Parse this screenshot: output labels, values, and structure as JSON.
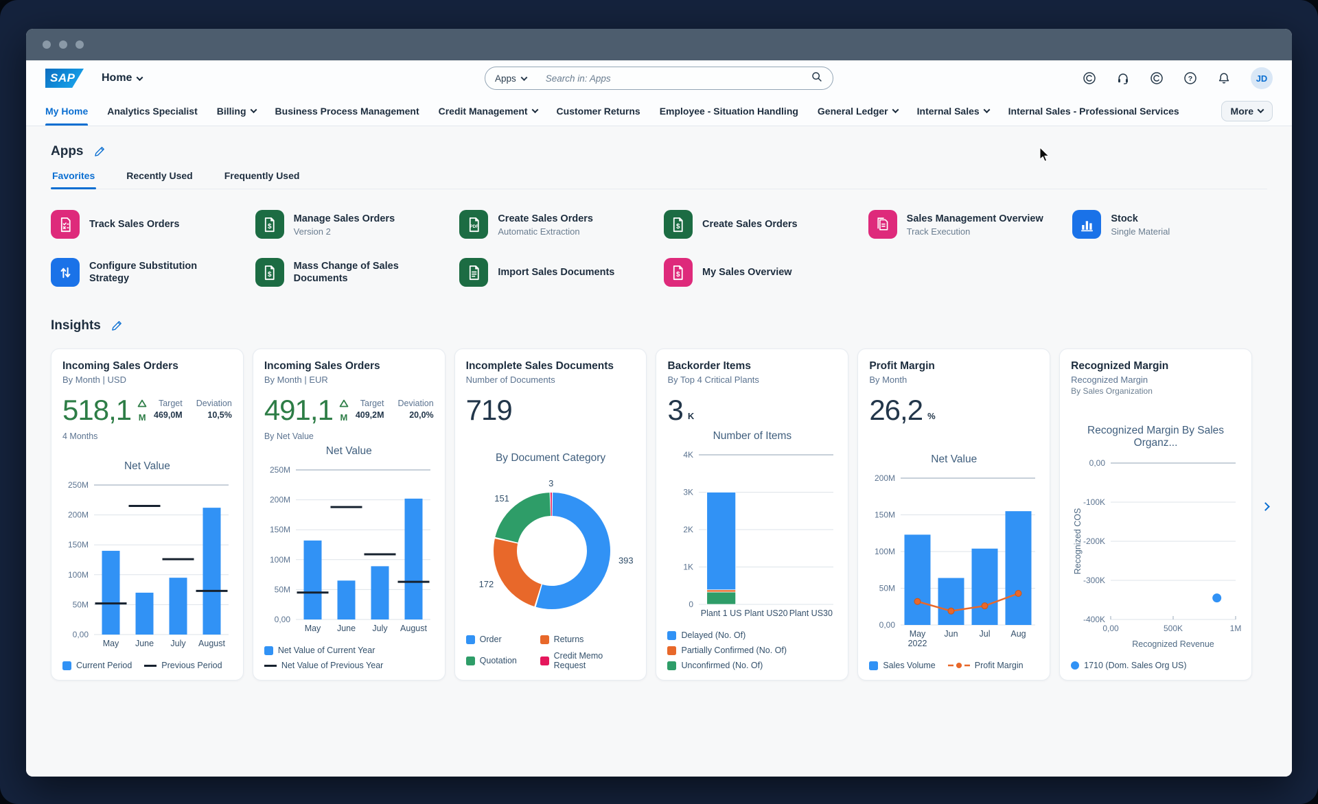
{
  "header": {
    "logo": "SAP",
    "home_label": "Home",
    "search": {
      "scope": "Apps",
      "placeholder": "Search in: Apps"
    },
    "icons": [
      {
        "name": "copilot-icon",
        "glyph": "c-circle"
      },
      {
        "name": "support-icon",
        "glyph": "headset"
      },
      {
        "name": "companion-icon",
        "glyph": "c-circle"
      },
      {
        "name": "help-icon",
        "glyph": "question"
      },
      {
        "name": "notifications-icon",
        "glyph": "bell"
      }
    ],
    "avatar_initials": "JD"
  },
  "nav_tabs": {
    "items": [
      {
        "label": "My Home",
        "active": true,
        "chevron": false
      },
      {
        "label": "Analytics Specialist",
        "chevron": false
      },
      {
        "label": "Billing",
        "chevron": true
      },
      {
        "label": "Business Process Management",
        "chevron": false
      },
      {
        "label": "Credit Management",
        "chevron": true
      },
      {
        "label": "Customer Returns",
        "chevron": false
      },
      {
        "label": "Employee - Situation Handling",
        "chevron": false
      },
      {
        "label": "General Ledger",
        "chevron": true
      },
      {
        "label": "Internal Sales",
        "chevron": true
      },
      {
        "label": "Internal Sales - Professional Services",
        "chevron": false
      }
    ],
    "more_label": "More"
  },
  "apps_section": {
    "title": "Apps",
    "tabs": [
      {
        "label": "Favorites",
        "active": true
      },
      {
        "label": "Recently Used",
        "active": false
      },
      {
        "label": "Frequently Used",
        "active": false
      }
    ],
    "tiles": [
      {
        "title": "Track Sales Orders",
        "subtitle": "",
        "color": "#de2a7b",
        "icon": "doc-check"
      },
      {
        "title": "Manage Sales Orders",
        "subtitle": "Version 2",
        "color": "#1c6c43",
        "icon": "doc-dollar"
      },
      {
        "title": "Create Sales Orders",
        "subtitle": "Automatic Extraction",
        "color": "#1c6c43",
        "icon": "pdf"
      },
      {
        "title": "Create Sales Orders",
        "subtitle": "",
        "color": "#1c6c43",
        "icon": "doc-dollar"
      },
      {
        "title": "Sales Management Overview",
        "subtitle": "Track Execution",
        "color": "#de2a7b",
        "icon": "doc-stack"
      },
      {
        "title": "Stock",
        "subtitle": "Single Material",
        "color": "#1a72e8",
        "icon": "bar-chart"
      },
      {
        "title": "Configure Substitution Strategy",
        "subtitle": "",
        "color": "#1a72e8",
        "icon": "swap-arrows"
      },
      {
        "title": "Mass Change of Sales Documents",
        "subtitle": "",
        "color": "#1c6c43",
        "icon": "doc-dollar"
      },
      {
        "title": "Import Sales Documents",
        "subtitle": "",
        "color": "#1c6c43",
        "icon": "doc-lines"
      },
      {
        "title": "My Sales Overview",
        "subtitle": "",
        "color": "#de2a7b",
        "icon": "doc-dollar"
      }
    ]
  },
  "insights_section": {
    "title": "Insights",
    "cards": [
      {
        "title": "Incoming Sales Orders",
        "subtitle": "By Month | USD",
        "kpi": {
          "value": "518,1",
          "unit": "M",
          "trend": "up",
          "color": "#2d7d46"
        },
        "target": {
          "label": "Target",
          "value": "469,0M"
        },
        "deviation": {
          "label": "Deviation",
          "value": "10,5%"
        },
        "footnote": "4 Months",
        "chart": {
          "type": "bar_target",
          "title": "Net Value",
          "y_max": 250,
          "y_ticks": [
            {
              "v": 250,
              "label": "250M"
            },
            {
              "v": 200,
              "label": "200M"
            },
            {
              "v": 150,
              "label": "150M"
            },
            {
              "v": 100,
              "label": "100M"
            },
            {
              "v": 50,
              "label": "50M"
            },
            {
              "v": 0,
              "label": "0,00"
            }
          ],
          "categories": [
            "May",
            "June",
            "July",
            "August"
          ],
          "bars": [
            140,
            70,
            95,
            212
          ],
          "targets": [
            52,
            215,
            126,
            73
          ],
          "bar_color": "#3192f5",
          "target_color": "#16212e",
          "legend_layout": "row",
          "legend": [
            {
              "swatch": "square",
              "color": "#3192f5",
              "label": "Current Period"
            },
            {
              "swatch": "line",
              "color": "#16212e",
              "label": "Previous Period"
            }
          ]
        }
      },
      {
        "title": "Incoming Sales Orders",
        "subtitle": "By Month | EUR",
        "kpi": {
          "value": "491,1",
          "unit": "M",
          "trend": "up",
          "color": "#2d7d46"
        },
        "target": {
          "label": "Target",
          "value": "409,2M"
        },
        "deviation": {
          "label": "Deviation",
          "value": "20,0%"
        },
        "footnote": "By Net Value",
        "chart": {
          "type": "bar_target",
          "title": "Net Value",
          "y_max": 250,
          "y_ticks": [
            {
              "v": 250,
              "label": "250M"
            },
            {
              "v": 200,
              "label": "200M"
            },
            {
              "v": 150,
              "label": "150M"
            },
            {
              "v": 100,
              "label": "100M"
            },
            {
              "v": 50,
              "label": "50M"
            },
            {
              "v": 0,
              "label": "0,00"
            }
          ],
          "categories": [
            "May",
            "June",
            "July",
            "August"
          ],
          "bars": [
            132,
            65,
            89,
            202
          ],
          "targets": [
            45,
            188,
            109,
            63
          ],
          "bar_color": "#3192f5",
          "target_color": "#16212e",
          "legend_layout": "column",
          "legend": [
            {
              "swatch": "square",
              "color": "#3192f5",
              "label": "Net Value of Current Year"
            },
            {
              "swatch": "line",
              "color": "#16212e",
              "label": "Net Value of Previous Year"
            }
          ]
        }
      },
      {
        "title": "Incomplete Sales Documents",
        "subtitle": "Number of Documents",
        "kpi": {
          "value": "719",
          "unit": "",
          "trend": null,
          "color": "#22364a"
        },
        "chart": {
          "type": "donut",
          "title": "By Document Category",
          "slices": [
            {
              "label": "Order",
              "value": 393,
              "color": "#3192f5"
            },
            {
              "label": "Returns",
              "value": 172,
              "color": "#e8682a"
            },
            {
              "label": "Quotation",
              "value": 151,
              "color": "#2e9d68"
            },
            {
              "label": "Credit Memo Request",
              "value": 3,
              "color": "#e5175c"
            }
          ],
          "legend_layout": "grid2",
          "legend": [
            {
              "swatch": "square",
              "color": "#3192f5",
              "label": "Order"
            },
            {
              "swatch": "square",
              "color": "#e8682a",
              "label": "Returns"
            },
            {
              "swatch": "square",
              "color": "#2e9d68",
              "label": "Quotation"
            },
            {
              "swatch": "square",
              "color": "#e5175c",
              "label": "Credit Memo Request"
            }
          ]
        }
      },
      {
        "title": "Backorder Items",
        "subtitle": "By Top 4 Critical Plants",
        "kpi": {
          "value": "3",
          "unit": "K",
          "trend": null,
          "color": "#22364a"
        },
        "chart": {
          "type": "stacked_bar",
          "title": "Number of Items",
          "y_max": 4,
          "y_ticks": [
            {
              "v": 4,
              "label": "4K"
            },
            {
              "v": 3,
              "label": "3K"
            },
            {
              "v": 2,
              "label": "2K"
            },
            {
              "v": 1,
              "label": "1K"
            },
            {
              "v": 0,
              "label": "0"
            }
          ],
          "categories": [
            "Plant 1 US",
            "Plant US20",
            "Plant US30"
          ],
          "stack_segments": [
            {
              "label": "Unconfirmed (No. Of)",
              "value": 0.33,
              "color": "#2e9d68"
            },
            {
              "label": "Partially Confirmed (No. Of)",
              "value": 0.06,
              "color": "#e8682a"
            },
            {
              "label": "Delayed (No. Of)",
              "value": 2.61,
              "color": "#3192f5"
            }
          ],
          "legend_layout": "column",
          "legend": [
            {
              "swatch": "square",
              "color": "#3192f5",
              "label": "Delayed (No. Of)"
            },
            {
              "swatch": "square",
              "color": "#e8682a",
              "label": "Partially Confirmed (No. Of)"
            },
            {
              "swatch": "square",
              "color": "#2e9d68",
              "label": "Unconfirmed (No. Of)"
            }
          ]
        }
      },
      {
        "title": "Profit Margin",
        "subtitle": "By Month",
        "kpi": {
          "value": "26,2",
          "unit": "%",
          "trend": null,
          "color": "#22364a"
        },
        "chart": {
          "type": "bar_line",
          "title": "Net Value",
          "y_max": 200,
          "y_ticks": [
            {
              "v": 200,
              "label": "200M"
            },
            {
              "v": 150,
              "label": "150M"
            },
            {
              "v": 100,
              "label": "100M"
            },
            {
              "v": 50,
              "label": "50M"
            },
            {
              "v": 0,
              "label": "0,00"
            }
          ],
          "categories": [
            "May\n2022",
            "Jun",
            "Jul",
            "Aug"
          ],
          "bars": [
            123,
            64,
            104,
            155
          ],
          "line": [
            32,
            19,
            26,
            43
          ],
          "bar_color": "#3192f5",
          "line_color": "#e8682a",
          "legend_layout": "row",
          "legend": [
            {
              "swatch": "square",
              "color": "#3192f5",
              "label": "Sales Volume"
            },
            {
              "swatch": "line-dot",
              "color": "#e8682a",
              "label": "Profit Margin"
            }
          ]
        }
      },
      {
        "title": "Recognized Margin",
        "subtitle": "Recognized Margin",
        "subtitle2": "By Sales Organization",
        "chart": {
          "type": "scatter",
          "title": "Recognized Margin By Sales Organz...",
          "x_label": "Recognized Revenue",
          "y_label": "Recognized COS",
          "x_max": 1000,
          "y_min": -400,
          "x_ticks": [
            {
              "v": 0,
              "label": "0,00"
            },
            {
              "v": 500,
              "label": "500K"
            },
            {
              "v": 1000,
              "label": "1M"
            }
          ],
          "y_ticks": [
            {
              "v": 0,
              "label": "0,00"
            },
            {
              "v": -100,
              "label": "-100K"
            },
            {
              "v": -200,
              "label": "-200K"
            },
            {
              "v": -300,
              "label": "-300K"
            },
            {
              "v": -400,
              "label": "-400K"
            }
          ],
          "points": [
            {
              "x": 850,
              "y": -345
            }
          ],
          "point_color": "#3192f5",
          "legend_layout": "row",
          "legend": [
            {
              "swatch": "dot",
              "color": "#3192f5",
              "label": "1710 (Dom. Sales Org US)"
            }
          ]
        }
      }
    ]
  }
}
